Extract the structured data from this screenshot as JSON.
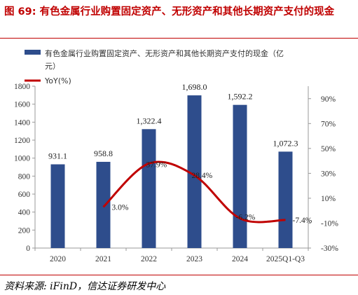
{
  "figure": {
    "title": "图 69: 有色金属行业购置固定资产、无形资产和其他长期资产支付的现金",
    "source": "资料来源: iFinD，信达证券研发中心"
  },
  "legend": {
    "bar_label": "有色金属行业购置固定资产、无形资产和其他长期资产支付的现金（亿元）",
    "bar_label_line1": "有色金属行业购置固定资产、无形资产和其他长期资产支付的现金（亿",
    "bar_label_line2": "元）",
    "line_label": "YoY(%)"
  },
  "colors": {
    "bar": "#2e4d8c",
    "line": "#c00000",
    "axis": "#999999"
  },
  "chart_data": {
    "type": "bar",
    "categories": [
      "2020",
      "2021",
      "2022",
      "2023",
      "2024",
      "2025Q1-Q3"
    ],
    "series": [
      {
        "name": "有色金属行业购置固定资产、无形资产和其他长期资产支付的现金（亿元）",
        "values": [
          931.1,
          958.8,
          1322.4,
          1698.0,
          1592.2,
          1072.3
        ],
        "value_labels": [
          "931.1",
          "958.8",
          "1,322.4",
          "1,698.0",
          "1,592.2",
          "1,072.3"
        ],
        "axis": "left"
      },
      {
        "name": "YoY(%)",
        "type": "line",
        "values": [
          null,
          3.0,
          37.9,
          28.4,
          -6.2,
          -7.4
        ],
        "value_labels": [
          "",
          "3.0%",
          "37.9%",
          "28.4%",
          "-6.2%",
          "-7.4%"
        ],
        "axis": "right"
      }
    ],
    "left_axis": {
      "ylim": [
        0,
        1800
      ],
      "ticks": [
        "0",
        "200",
        "400",
        "600",
        "800",
        "1000",
        "1200",
        "1400",
        "1600",
        "1800"
      ]
    },
    "right_axis": {
      "ylim": [
        -30,
        100
      ],
      "ticks": [
        "-30%",
        "-10%",
        "10%",
        "30%",
        "50%",
        "70%",
        "90%"
      ]
    },
    "grid": false,
    "legend_position": "top-left"
  }
}
